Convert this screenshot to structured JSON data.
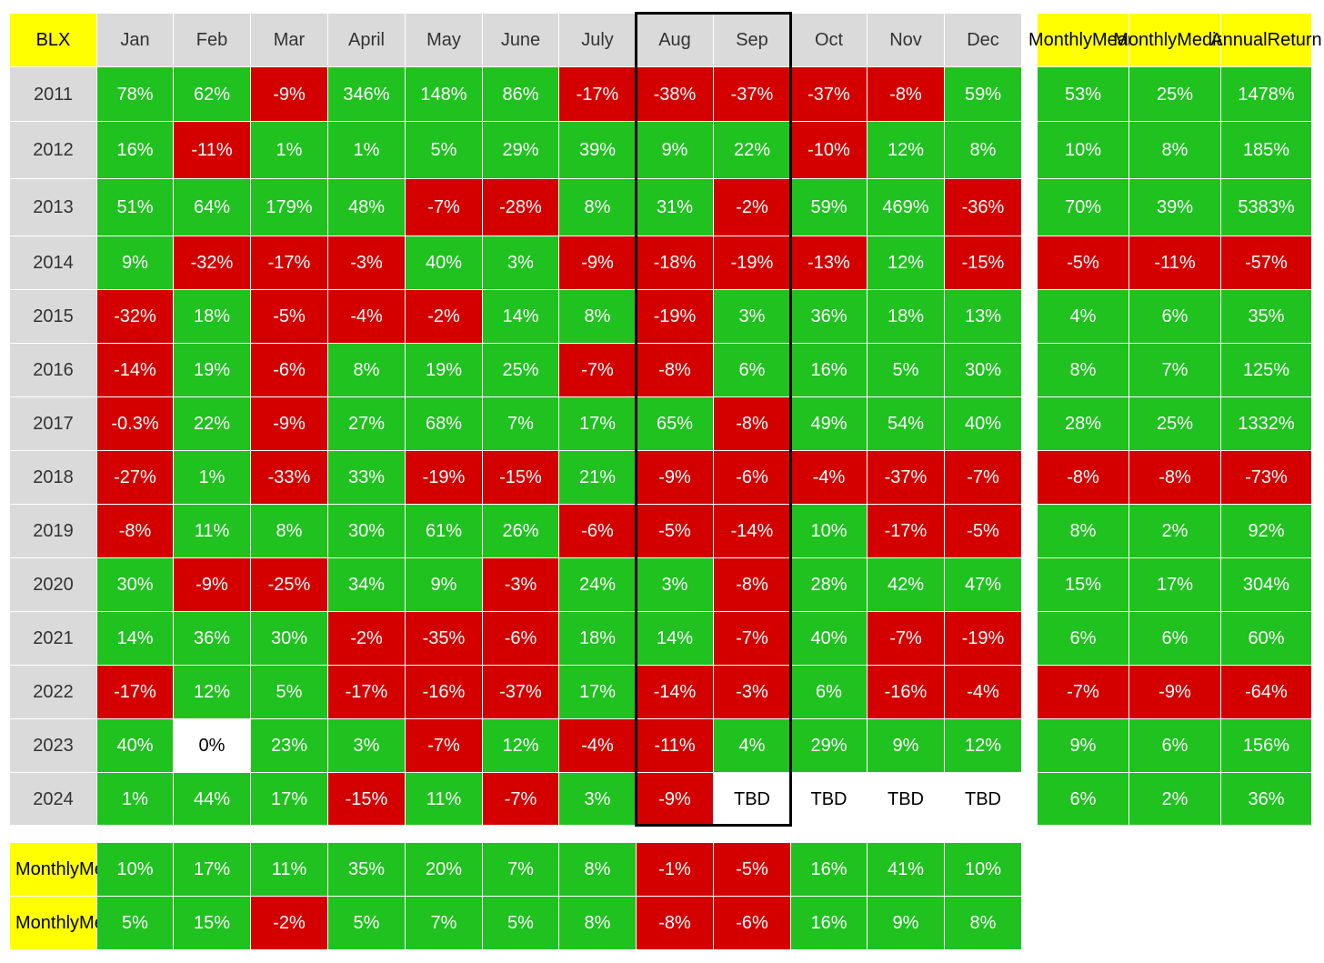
{
  "chart_data": {
    "type": "table",
    "title": "BLX",
    "months": [
      "Jan",
      "Feb",
      "Mar",
      "April",
      "May",
      "June",
      "July",
      "Aug",
      "Sep",
      "Oct",
      "Nov",
      "Dec"
    ],
    "summary_headers": [
      [
        "Monthly",
        "Mean"
      ],
      [
        "Monthly",
        "Median"
      ],
      [
        "Annual",
        "Return"
      ]
    ],
    "highlighted_months": [
      "Aug",
      "Sep"
    ],
    "rows": [
      {
        "year": "2011",
        "values": [
          "78%",
          "62%",
          "-9%",
          "346%",
          "148%",
          "86%",
          "-17%",
          "-38%",
          "-37%",
          "-37%",
          "-8%",
          "59%"
        ],
        "summary": [
          "53%",
          "25%",
          "1478%"
        ]
      },
      {
        "year": "2012",
        "values": [
          "16%",
          "-11%",
          "1%",
          "1%",
          "5%",
          "29%",
          "39%",
          "9%",
          "22%",
          "-10%",
          "12%",
          "8%"
        ],
        "summary": [
          "10%",
          "8%",
          "185%"
        ]
      },
      {
        "year": "2013",
        "values": [
          "51%",
          "64%",
          "179%",
          "48%",
          "-7%",
          "-28%",
          "8%",
          "31%",
          "-2%",
          "59%",
          "469%",
          "-36%"
        ],
        "summary": [
          "70%",
          "39%",
          "5383%"
        ]
      },
      {
        "year": "2014",
        "values": [
          "9%",
          "-32%",
          "-17%",
          "-3%",
          "40%",
          "3%",
          "-9%",
          "-18%",
          "-19%",
          "-13%",
          "12%",
          "-15%"
        ],
        "summary": [
          "-5%",
          "-11%",
          "-57%"
        ]
      },
      {
        "year": "2015",
        "values": [
          "-32%",
          "18%",
          "-5%",
          "-4%",
          "-2%",
          "14%",
          "8%",
          "-19%",
          "3%",
          "36%",
          "18%",
          "13%"
        ],
        "summary": [
          "4%",
          "6%",
          "35%"
        ]
      },
      {
        "year": "2016",
        "values": [
          "-14%",
          "19%",
          "-6%",
          "8%",
          "19%",
          "25%",
          "-7%",
          "-8%",
          "6%",
          "16%",
          "5%",
          "30%"
        ],
        "summary": [
          "8%",
          "7%",
          "125%"
        ]
      },
      {
        "year": "2017",
        "values": [
          "-0.3%",
          "22%",
          "-9%",
          "27%",
          "68%",
          "7%",
          "17%",
          "65%",
          "-8%",
          "49%",
          "54%",
          "40%"
        ],
        "summary": [
          "28%",
          "25%",
          "1332%"
        ]
      },
      {
        "year": "2018",
        "values": [
          "-27%",
          "1%",
          "-33%",
          "33%",
          "-19%",
          "-15%",
          "21%",
          "-9%",
          "-6%",
          "-4%",
          "-37%",
          "-7%"
        ],
        "summary": [
          "-8%",
          "-8%",
          "-73%"
        ]
      },
      {
        "year": "2019",
        "values": [
          "-8%",
          "11%",
          "8%",
          "30%",
          "61%",
          "26%",
          "-6%",
          "-5%",
          "-14%",
          "10%",
          "-17%",
          "-5%"
        ],
        "summary": [
          "8%",
          "2%",
          "92%"
        ]
      },
      {
        "year": "2020",
        "values": [
          "30%",
          "-9%",
          "-25%",
          "34%",
          "9%",
          "-3%",
          "24%",
          "3%",
          "-8%",
          "28%",
          "42%",
          "47%"
        ],
        "summary": [
          "15%",
          "17%",
          "304%"
        ]
      },
      {
        "year": "2021",
        "values": [
          "14%",
          "36%",
          "30%",
          "-2%",
          "-35%",
          "-6%",
          "18%",
          "14%",
          "-7%",
          "40%",
          "-7%",
          "-19%"
        ],
        "summary": [
          "6%",
          "6%",
          "60%"
        ]
      },
      {
        "year": "2022",
        "values": [
          "-17%",
          "12%",
          "5%",
          "-17%",
          "-16%",
          "-37%",
          "17%",
          "-14%",
          "-3%",
          "6%",
          "-16%",
          "-4%"
        ],
        "summary": [
          "-7%",
          "-9%",
          "-64%"
        ]
      },
      {
        "year": "2023",
        "values": [
          "40%",
          "0%",
          "23%",
          "3%",
          "-7%",
          "12%",
          "-4%",
          "-11%",
          "4%",
          "29%",
          "9%",
          "12%"
        ],
        "summary": [
          "9%",
          "6%",
          "156%"
        ]
      },
      {
        "year": "2024",
        "values": [
          "1%",
          "44%",
          "17%",
          "-15%",
          "11%",
          "-7%",
          "3%",
          "-9%",
          "TBD",
          "TBD",
          "TBD",
          "TBD"
        ],
        "summary": [
          "6%",
          "2%",
          "36%"
        ]
      }
    ],
    "footer_rows": [
      {
        "label": [
          "Monthly",
          "Mean"
        ],
        "values": [
          "10%",
          "17%",
          "11%",
          "35%",
          "20%",
          "7%",
          "8%",
          "-1%",
          "-5%",
          "16%",
          "41%",
          "10%"
        ]
      },
      {
        "label": [
          "Monthly",
          "Median"
        ],
        "values": [
          "5%",
          "15%",
          "-2%",
          "5%",
          "7%",
          "5%",
          "8%",
          "-8%",
          "-6%",
          "16%",
          "9%",
          "8%"
        ]
      }
    ],
    "colors": {
      "positive": "#1fc21f",
      "negative": "#d40000",
      "neutral": "#ffffff",
      "header": "#dadada",
      "label": "#ffff00",
      "border": "#000000"
    }
  }
}
